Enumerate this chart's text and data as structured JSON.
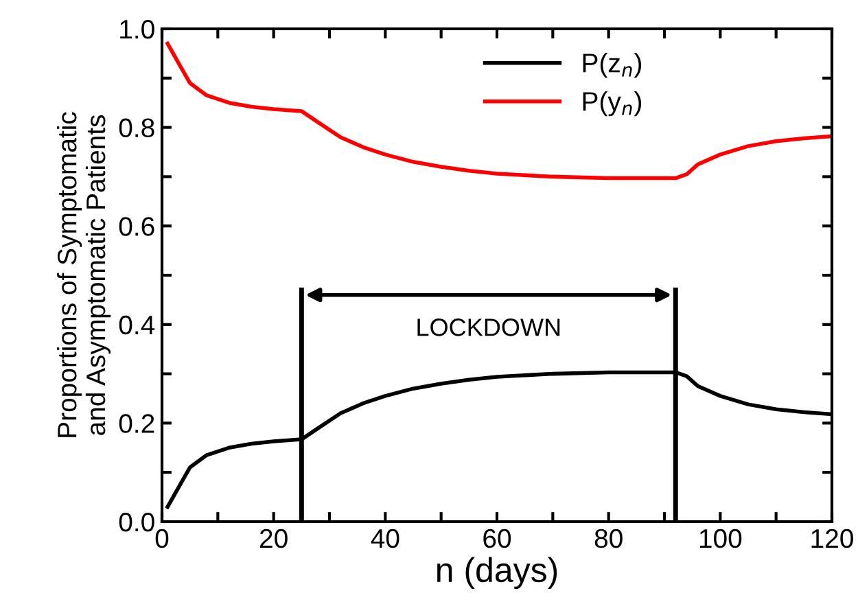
{
  "chart_data": {
    "type": "line",
    "xlabel": "n (days)",
    "ylabel": "Proportions of Symptomatic\nand Asymptomatic Patients",
    "series": [
      {
        "name": "P(z$_{n}$)",
        "color": "#000000",
        "x": [
          1,
          3,
          5,
          8,
          12,
          16,
          20,
          25,
          28,
          32,
          36,
          40,
          45,
          50,
          55,
          60,
          70,
          80,
          92,
          94,
          96,
          100,
          105,
          110,
          115,
          120
        ],
        "values": [
          0.03,
          0.07,
          0.11,
          0.135,
          0.15,
          0.158,
          0.163,
          0.167,
          0.19,
          0.22,
          0.24,
          0.255,
          0.27,
          0.28,
          0.288,
          0.294,
          0.3,
          0.303,
          0.303,
          0.295,
          0.275,
          0.255,
          0.238,
          0.228,
          0.222,
          0.218
        ]
      },
      {
        "name": "P(y$_{n}$)",
        "color": "#ff0000",
        "x": [
          1,
          3,
          5,
          8,
          12,
          16,
          20,
          25,
          28,
          32,
          36,
          40,
          45,
          50,
          55,
          60,
          70,
          80,
          92,
          94,
          96,
          100,
          105,
          110,
          115,
          120
        ],
        "values": [
          0.97,
          0.93,
          0.89,
          0.865,
          0.85,
          0.842,
          0.837,
          0.833,
          0.81,
          0.78,
          0.76,
          0.745,
          0.73,
          0.72,
          0.712,
          0.706,
          0.7,
          0.697,
          0.697,
          0.705,
          0.725,
          0.745,
          0.762,
          0.772,
          0.778,
          0.782
        ]
      }
    ],
    "ref_lines": [
      {
        "axis": "x",
        "value": 25,
        "color": "#000000"
      },
      {
        "axis": "x",
        "value": 92,
        "color": "#000000"
      }
    ],
    "annotations": [
      "LOCKDOWN"
    ],
    "xlim": [
      0,
      120
    ],
    "ylim": [
      0,
      1.0
    ],
    "xticks": [
      0,
      {
        "value": 10,
        "label": null
      },
      20,
      {
        "value": 30,
        "label": null
      },
      40,
      {
        "value": 50,
        "label": null
      },
      60,
      {
        "value": 70,
        "label": null
      },
      80,
      {
        "value": 90,
        "label": null
      },
      100,
      {
        "value": 110,
        "label": null
      },
      120
    ],
    "yticks": [
      {
        "value": 0,
        "label": "0.0"
      },
      {
        "value": 0.1,
        "label": null
      },
      0.2,
      {
        "value": 0.3,
        "label": null
      },
      0.4,
      {
        "value": 0.5,
        "label": null
      },
      0.6,
      {
        "value": 0.7,
        "label": null
      },
      0.8,
      {
        "value": 0.9,
        "label": null
      },
      {
        "value": 1,
        "label": "1.0"
      }
    ],
    "legend": "top",
    "grid": false,
    "marker": "none",
    "line_style": "solid"
  }
}
